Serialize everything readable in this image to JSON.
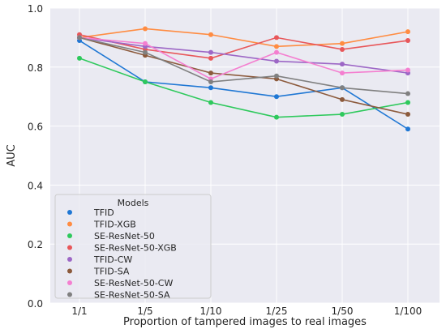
{
  "chart_data": {
    "type": "line",
    "title": "",
    "xlabel": "Proportion of tampered images to real images",
    "ylabel": "AUC",
    "categories": [
      "1/1",
      "1/5",
      "1/10",
      "1/25",
      "1/50",
      "1/100"
    ],
    "ylim": [
      0.0,
      1.0
    ],
    "yticks": [
      "0.0",
      "0.2",
      "0.4",
      "0.6",
      "0.8",
      "1.0"
    ],
    "grid": true,
    "legend": {
      "title": "Models",
      "placement": "lower-left"
    },
    "series": [
      {
        "name": "TFID",
        "color": "#1f77d4",
        "values": [
          0.89,
          0.75,
          0.73,
          0.7,
          0.73,
          0.59
        ]
      },
      {
        "name": "TFID-XGB",
        "color": "#ff8c42",
        "values": [
          0.9,
          0.93,
          0.91,
          0.87,
          0.88,
          0.92
        ]
      },
      {
        "name": "SE-ResNet-50",
        "color": "#2ec95c",
        "values": [
          0.83,
          0.75,
          0.68,
          0.63,
          0.64,
          0.68
        ]
      },
      {
        "name": "SE-ResNet-50-XGB",
        "color": "#e8575a",
        "values": [
          0.91,
          0.86,
          0.83,
          0.9,
          0.86,
          0.89
        ]
      },
      {
        "name": "TFID-CW",
        "color": "#9d67c6",
        "values": [
          0.9,
          0.87,
          0.85,
          0.82,
          0.81,
          0.78
        ]
      },
      {
        "name": "TFID-SA",
        "color": "#8c5a3c",
        "values": [
          0.9,
          0.84,
          0.78,
          0.76,
          0.69,
          0.64
        ]
      },
      {
        "name": "SE-ResNet-50-CW",
        "color": "#f47fd0",
        "values": [
          0.9,
          0.88,
          0.76,
          0.85,
          0.78,
          0.79
        ]
      },
      {
        "name": "SE-ResNet-50-SA",
        "color": "#808080",
        "values": [
          0.9,
          0.85,
          0.75,
          0.77,
          0.73,
          0.71
        ]
      }
    ]
  },
  "colors": {
    "plot_background": "#eaeaf2",
    "grid": "#ffffff"
  }
}
